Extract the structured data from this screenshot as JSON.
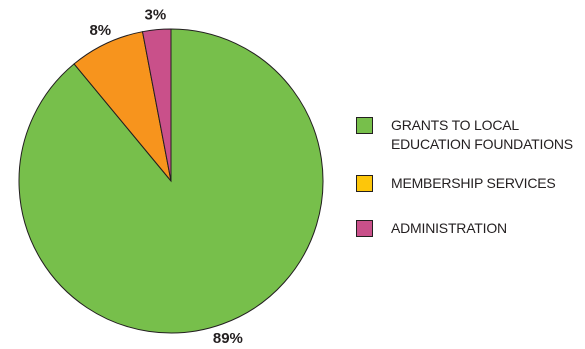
{
  "chart_data": {
    "type": "pie",
    "slices": [
      {
        "label": "GRANTS TO LOCAL EDUCATION FOUNDATIONS",
        "value": 89,
        "display": "89%",
        "color": "#77bf4b"
      },
      {
        "label": "MEMBERSHIP SERVICES",
        "value": 8,
        "display": "8%",
        "color": "#f7941d"
      },
      {
        "label": "ADMINISTRATION",
        "value": 3,
        "display": "3%",
        "color": "#c9508a"
      }
    ],
    "legend": {
      "position": "right",
      "items": [
        {
          "label_lines": [
            "GRANTS TO LOCAL",
            "EDUCATION FOUNDATIONS"
          ],
          "color": "#77bf4b"
        },
        {
          "label_lines": [
            "MEMBERSHIP SERVICES"
          ],
          "color": "#fdc60a"
        },
        {
          "label_lines": [
            "ADMINISTRATION"
          ],
          "color": "#c9508a"
        }
      ]
    }
  }
}
